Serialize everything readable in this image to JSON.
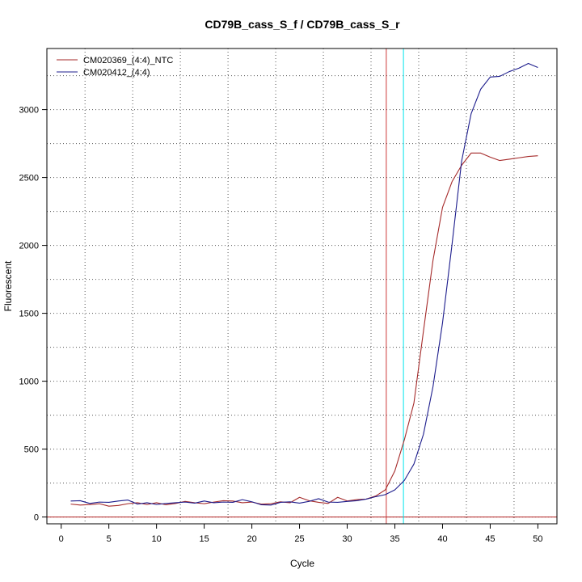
{
  "chart_data": {
    "type": "line",
    "title": "CD79B_cass_S_f / CD79B_cass_S_r",
    "xlabel": "Cycle",
    "ylabel": "Fluorescent",
    "xlim": [
      -1.5,
      52
    ],
    "ylim": [
      -50,
      3450
    ],
    "x_ticks": [
      0,
      5,
      10,
      15,
      20,
      25,
      30,
      35,
      40,
      45,
      50
    ],
    "y_ticks": [
      0,
      500,
      1000,
      1500,
      2000,
      2500,
      3000
    ],
    "grid": true,
    "legend_position": "top-left",
    "baseline": {
      "value": 0,
      "color": "#b22222"
    },
    "thresholds": [
      {
        "x": 34.1,
        "color": "#cd3a3a"
      },
      {
        "x": 35.9,
        "color": "#00e5ee"
      }
    ],
    "x": [
      1,
      2,
      3,
      4,
      5,
      6,
      7,
      8,
      9,
      10,
      11,
      12,
      13,
      14,
      15,
      16,
      17,
      18,
      19,
      20,
      21,
      22,
      23,
      24,
      25,
      26,
      27,
      28,
      29,
      30,
      31,
      32,
      33,
      34,
      35,
      36,
      37,
      38,
      39,
      40,
      41,
      42,
      43,
      44,
      45,
      46,
      47,
      48,
      49,
      50
    ],
    "series": [
      {
        "name": "CM020369_(4:4)_NTC",
        "color": "#a52a2a",
        "values": [
          95,
          88,
          92,
          98,
          80,
          85,
          98,
          105,
          92,
          105,
          90,
          100,
          115,
          105,
          98,
          110,
          120,
          118,
          105,
          110,
          95,
          98,
          112,
          105,
          145,
          120,
          108,
          100,
          145,
          118,
          128,
          132,
          155,
          200,
          340,
          570,
          840,
          1370,
          1890,
          2280,
          2470,
          2590,
          2680,
          2680,
          2650,
          2625,
          2635,
          2645,
          2655,
          2660
        ]
      },
      {
        "name": "CM020412_(4:4)",
        "color": "#1c1c8c",
        "values": [
          118,
          120,
          100,
          110,
          108,
          118,
          125,
          95,
          105,
          92,
          100,
          105,
          110,
          102,
          118,
          105,
          110,
          108,
          128,
          112,
          90,
          88,
          108,
          112,
          102,
          115,
          135,
          110,
          108,
          115,
          120,
          132,
          150,
          165,
          200,
          270,
          390,
          610,
          960,
          1430,
          2010,
          2620,
          2970,
          3150,
          3240,
          3245,
          3280,
          3305,
          3340,
          3310
        ]
      }
    ]
  }
}
